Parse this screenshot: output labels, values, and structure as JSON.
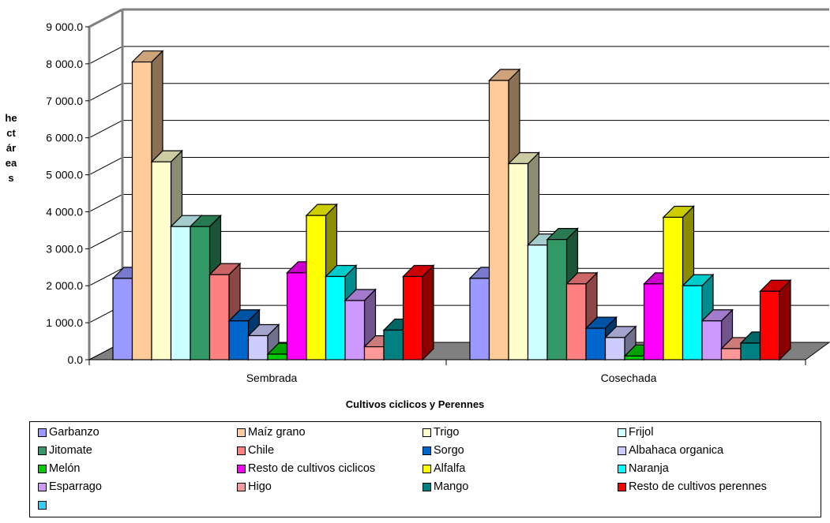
{
  "chart_data": {
    "type": "bar",
    "style": "3d-clustered-column",
    "categories": [
      "Sembrada",
      "Cosechada"
    ],
    "ylim": [
      0,
      9000
    ],
    "yticks": [
      "0.0",
      "1 000.0",
      "2 000.0",
      "3 000.0",
      "4 000.0",
      "5 000.0",
      "6 000.0",
      "7 000.0",
      "8 000.0",
      "9 000.0"
    ],
    "ytick_values": [
      0,
      1000,
      2000,
      3000,
      4000,
      5000,
      6000,
      7000,
      8000,
      9000
    ],
    "ylabel": "hectáreas",
    "xlabel": "Cultivos ciclicos y Perennes",
    "grid": true,
    "legend_position": "bottom",
    "series": [
      {
        "name": "Garbanzo",
        "color": "#9999ff",
        "values": [
          2200,
          2200
        ]
      },
      {
        "name": "Maíz grano",
        "color": "#ffcc99",
        "values": [
          8050,
          7550
        ]
      },
      {
        "name": "Trigo",
        "color": "#ffffcc",
        "values": [
          5350,
          5300
        ]
      },
      {
        "name": "Frijol",
        "color": "#ccffff",
        "values": [
          3600,
          3100
        ]
      },
      {
        "name": "Jitomate",
        "color": "#339966",
        "values": [
          3600,
          3250
        ]
      },
      {
        "name": "Chile",
        "color": "#ff8080",
        "values": [
          2300,
          2050
        ]
      },
      {
        "name": "Sorgo",
        "color": "#0066cc",
        "values": [
          1050,
          850
        ]
      },
      {
        "name": "Albahaca organica",
        "color": "#ccccff",
        "values": [
          650,
          600
        ]
      },
      {
        "name": "Melón",
        "color": "#00cc00",
        "values": [
          150,
          100
        ]
      },
      {
        "name": "Resto de cultivos ciclicos",
        "color": "#ff00ff",
        "values": [
          2350,
          2050
        ]
      },
      {
        "name": "Alfalfa",
        "color": "#ffff00",
        "values": [
          3900,
          3850
        ]
      },
      {
        "name": "Naranja",
        "color": "#00ffff",
        "values": [
          2250,
          2000
        ]
      },
      {
        "name": "Esparrago",
        "color": "#cc99ff",
        "values": [
          1600,
          1050
        ]
      },
      {
        "name": "Higo",
        "color": "#ff9999",
        "values": [
          350,
          300
        ]
      },
      {
        "name": "Mango",
        "color": "#008080",
        "values": [
          800,
          450
        ]
      },
      {
        "name": "Resto de cultivos perennes",
        "color": "#ff0000",
        "values": [
          2250,
          1850
        ]
      }
    ],
    "legend_extra_swatch_color": "#33ccff"
  }
}
